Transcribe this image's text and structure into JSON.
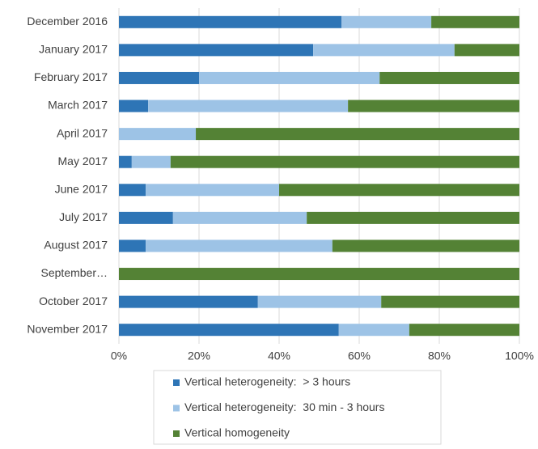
{
  "chart_data": {
    "type": "bar",
    "orientation": "horizontal",
    "stacked": true,
    "categories": [
      "December 2016",
      "January 2017",
      "February 2017",
      "March 2017",
      "April 2017",
      "May 2017",
      "June 2017",
      "July 2017",
      "August 2017",
      "September…",
      "October 2017",
      "November 2017"
    ],
    "series": [
      {
        "name": "Vertical heterogeneity:  > 3 hours",
        "color": "#2e75b6",
        "values": [
          55.6,
          48.5,
          20.0,
          7.3,
          0,
          3.2,
          6.7,
          13.5,
          6.7,
          0,
          34.7,
          54.9
        ]
      },
      {
        "name": "Vertical heterogeneity:  30 min - 3 hours",
        "color": "#9dc3e6",
        "values": [
          22.4,
          35.3,
          45.1,
          49.9,
          19.2,
          9.7,
          33.3,
          33.4,
          46.6,
          0,
          30.8,
          17.6
        ]
      },
      {
        "name": "Vertical homogeneity",
        "color": "#548235",
        "values": [
          22.0,
          16.2,
          34.9,
          42.8,
          80.8,
          87.1,
          60.0,
          53.1,
          46.7,
          100,
          34.5,
          27.5
        ]
      }
    ],
    "xlim": [
      0,
      100
    ],
    "xticks": [
      {
        "value": 0,
        "label": "0%"
      },
      {
        "value": 20,
        "label": "20%"
      },
      {
        "value": 40,
        "label": "40%"
      },
      {
        "value": 60,
        "label": "60%"
      },
      {
        "value": 80,
        "label": "80%"
      },
      {
        "value": 100,
        "label": "100%"
      }
    ],
    "grid": true,
    "legend": "bottom"
  }
}
